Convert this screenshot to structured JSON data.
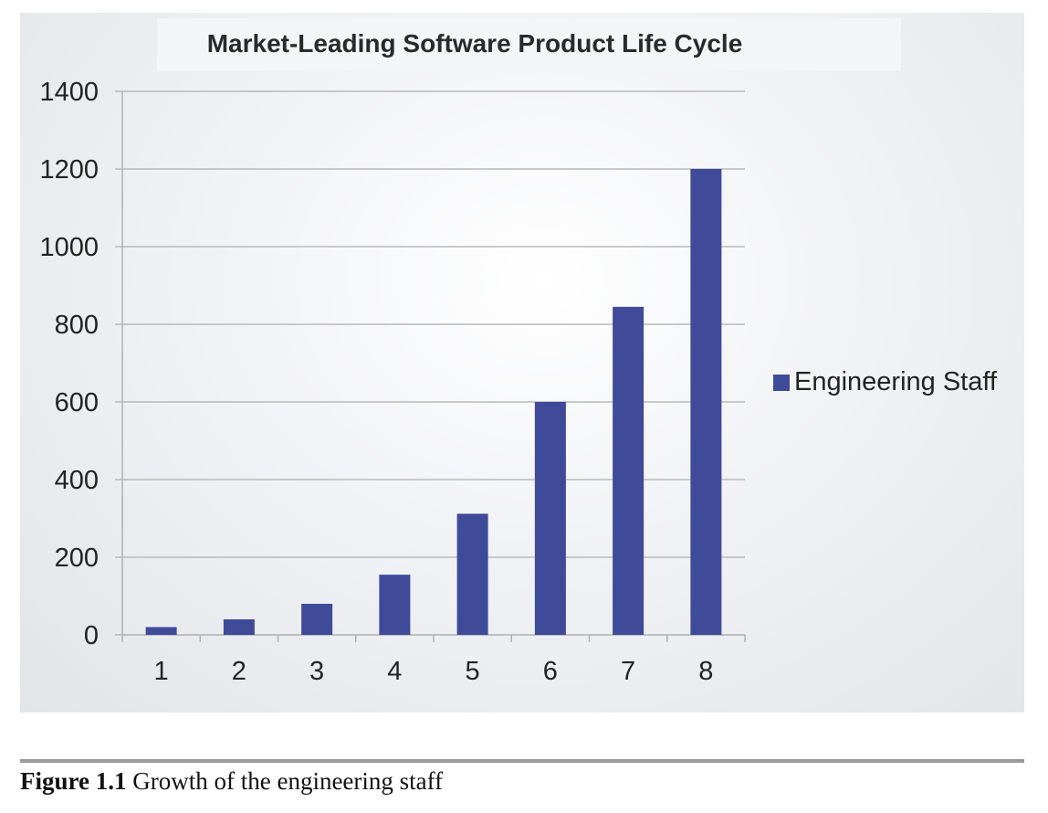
{
  "chart_data": {
    "type": "bar",
    "title": "Market-Leading Software Product Life Cycle",
    "categories": [
      "1",
      "2",
      "3",
      "4",
      "5",
      "6",
      "7",
      "8"
    ],
    "series": [
      {
        "name": "Engineering Staff",
        "values": [
          20,
          40,
          80,
          155,
          312,
          600,
          845,
          1200
        ],
        "color": "#3f4a99"
      }
    ],
    "ylim": [
      0,
      1400
    ],
    "yticks": [
      0,
      200,
      400,
      600,
      800,
      1000,
      1200,
      1400
    ],
    "grid": true,
    "legend_position": "right"
  },
  "caption": {
    "number": "Figure 1.1",
    "text": "Growth of the engineering staff"
  }
}
